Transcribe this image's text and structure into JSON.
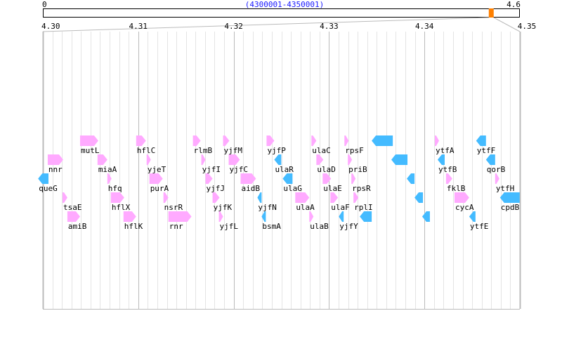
{
  "overview": {
    "start_label": "0",
    "end_label": "4.6",
    "range_label": "(4300001-4350001)",
    "genome_max_mb": 4.6,
    "window_mb": [
      4.3,
      4.35
    ],
    "marker_color": "#ff8000"
  },
  "axis": {
    "min_mb": 4.3,
    "max_mb": 4.35,
    "ticks": [
      "4.30",
      "4.31",
      "4.32",
      "4.33",
      "4.34",
      "4.35"
    ],
    "minor_per_major": 10
  },
  "colors": {
    "forward": "#ffaaff",
    "reverse": "#44bbff"
  },
  "genes": [
    {
      "name": "mutL",
      "row": 0,
      "start": 4.3039,
      "end": 4.30581,
      "strand": "+"
    },
    {
      "name": "hflC",
      "row": 0,
      "start": 4.30978,
      "end": 4.3108,
      "strand": "+"
    },
    {
      "name": "rlmB",
      "row": 0,
      "start": 4.31573,
      "end": 4.31654,
      "strand": "+"
    },
    {
      "name": "yjfM",
      "row": 0,
      "start": 4.31889,
      "end": 4.31955,
      "strand": "+"
    },
    {
      "name": "yjfP",
      "row": 0,
      "start": 4.32345,
      "end": 4.32426,
      "strand": "+"
    },
    {
      "name": "ulaC",
      "row": 0,
      "start": 4.32815,
      "end": 4.32867,
      "strand": "+"
    },
    {
      "name": "rpsF",
      "row": 0,
      "start": 4.33161,
      "end": 4.33205,
      "strand": "+"
    },
    {
      "name": "",
      "row": 0,
      "start": 4.33447,
      "end": 4.33668,
      "strand": "-"
    },
    {
      "name": "ytfA",
      "row": 0,
      "start": 4.34109,
      "end": 4.34153,
      "strand": "+"
    },
    {
      "name": "ytfF",
      "row": 0,
      "start": 4.34542,
      "end": 4.34645,
      "strand": "-"
    },
    {
      "name": "nnr",
      "row": 1,
      "start": 4.30051,
      "end": 4.30213,
      "strand": "+"
    },
    {
      "name": "miaA",
      "row": 1,
      "start": 4.30573,
      "end": 4.30676,
      "strand": "+"
    },
    {
      "name": "yjeT",
      "row": 1,
      "start": 4.31088,
      "end": 4.31132,
      "strand": "+"
    },
    {
      "name": "yjfI",
      "row": 1,
      "start": 4.31661,
      "end": 4.31705,
      "strand": "+"
    },
    {
      "name": "yjfC",
      "row": 1,
      "start": 4.31948,
      "end": 4.32065,
      "strand": "+"
    },
    {
      "name": "ulaR",
      "row": 1,
      "start": 4.32426,
      "end": 4.32499,
      "strand": "-"
    },
    {
      "name": "ulaD",
      "row": 1,
      "start": 4.32867,
      "end": 4.3294,
      "strand": "+"
    },
    {
      "name": "priB",
      "row": 1,
      "start": 4.33197,
      "end": 4.33241,
      "strand": "+"
    },
    {
      "name": "",
      "row": 1,
      "start": 4.33653,
      "end": 4.33822,
      "strand": "-"
    },
    {
      "name": "ytfB",
      "row": 1,
      "start": 4.34138,
      "end": 4.34212,
      "strand": "-"
    },
    {
      "name": "qorB",
      "row": 1,
      "start": 4.34645,
      "end": 4.34741,
      "strand": "-"
    },
    {
      "name": "queG",
      "row": 2,
      "start": 4.2995,
      "end": 4.30059,
      "strand": "-"
    },
    {
      "name": "hfq",
      "row": 2,
      "start": 4.30676,
      "end": 4.3072,
      "strand": "+"
    },
    {
      "name": "purA",
      "row": 2,
      "start": 4.31117,
      "end": 4.31257,
      "strand": "+"
    },
    {
      "name": "yjfJ",
      "row": 2,
      "start": 4.31705,
      "end": 4.31779,
      "strand": "+"
    },
    {
      "name": "aidB",
      "row": 2,
      "start": 4.32073,
      "end": 4.32234,
      "strand": "+"
    },
    {
      "name": "ulaG",
      "row": 2,
      "start": 4.32514,
      "end": 4.32617,
      "strand": "-"
    },
    {
      "name": "ulaE",
      "row": 2,
      "start": 4.32933,
      "end": 4.33021,
      "strand": "+"
    },
    {
      "name": "rpsR",
      "row": 2,
      "start": 4.33234,
      "end": 4.33278,
      "strand": "+"
    },
    {
      "name": "",
      "row": 2,
      "start": 4.33815,
      "end": 4.33896,
      "strand": "-"
    },
    {
      "name": "fklB",
      "row": 2,
      "start": 4.34226,
      "end": 4.34292,
      "strand": "+"
    },
    {
      "name": "ytfH",
      "row": 2,
      "start": 4.34741,
      "end": 4.34785,
      "strand": "+"
    },
    {
      "name": "tsaE",
      "row": 3,
      "start": 4.30206,
      "end": 4.30257,
      "strand": "+"
    },
    {
      "name": "hflX",
      "row": 3,
      "start": 4.30713,
      "end": 4.30853,
      "strand": "+"
    },
    {
      "name": "nsrR",
      "row": 3,
      "start": 4.31264,
      "end": 4.31316,
      "strand": "+"
    },
    {
      "name": "yjfK",
      "row": 3,
      "start": 4.31779,
      "end": 4.31852,
      "strand": "+"
    },
    {
      "name": "yjfN",
      "row": 3,
      "start": 4.32249,
      "end": 4.32293,
      "strand": "-"
    },
    {
      "name": "ulaA",
      "row": 3,
      "start": 4.32646,
      "end": 4.32793,
      "strand": "+"
    },
    {
      "name": "ulaF",
      "row": 3,
      "start": 4.33014,
      "end": 4.33094,
      "strand": "+"
    },
    {
      "name": "rplI",
      "row": 3,
      "start": 4.33256,
      "end": 4.33308,
      "strand": "+"
    },
    {
      "name": "",
      "row": 3,
      "start": 4.33896,
      "end": 4.33984,
      "strand": "-"
    },
    {
      "name": "cycA",
      "row": 3,
      "start": 4.34315,
      "end": 4.34469,
      "strand": "+"
    },
    {
      "name": "cpdB",
      "row": 3,
      "start": 4.34792,
      "end": 4.34998,
      "strand": "-"
    },
    {
      "name": "amiB",
      "row": 4,
      "start": 4.30257,
      "end": 4.3039,
      "strand": "+"
    },
    {
      "name": "hflK",
      "row": 4,
      "start": 4.30845,
      "end": 4.30978,
      "strand": "+"
    },
    {
      "name": "rnr",
      "row": 4,
      "start": 4.31316,
      "end": 4.31558,
      "strand": "+"
    },
    {
      "name": "yjfL",
      "row": 4,
      "start": 4.31845,
      "end": 4.31889,
      "strand": "+"
    },
    {
      "name": "bsmA",
      "row": 4,
      "start": 4.32293,
      "end": 4.32337,
      "strand": "-"
    },
    {
      "name": "ulaB",
      "row": 4,
      "start": 4.32793,
      "end": 4.32837,
      "strand": "+"
    },
    {
      "name": "yjfY",
      "row": 4,
      "start": 4.33102,
      "end": 4.33153,
      "strand": "-"
    },
    {
      "name": "",
      "row": 4,
      "start": 4.33322,
      "end": 4.33447,
      "strand": "-"
    },
    {
      "name": "",
      "row": 4,
      "start": 4.33976,
      "end": 4.34057,
      "strand": "-"
    },
    {
      "name": "ytfE",
      "row": 4,
      "start": 4.34469,
      "end": 4.34535,
      "strand": "-"
    }
  ]
}
